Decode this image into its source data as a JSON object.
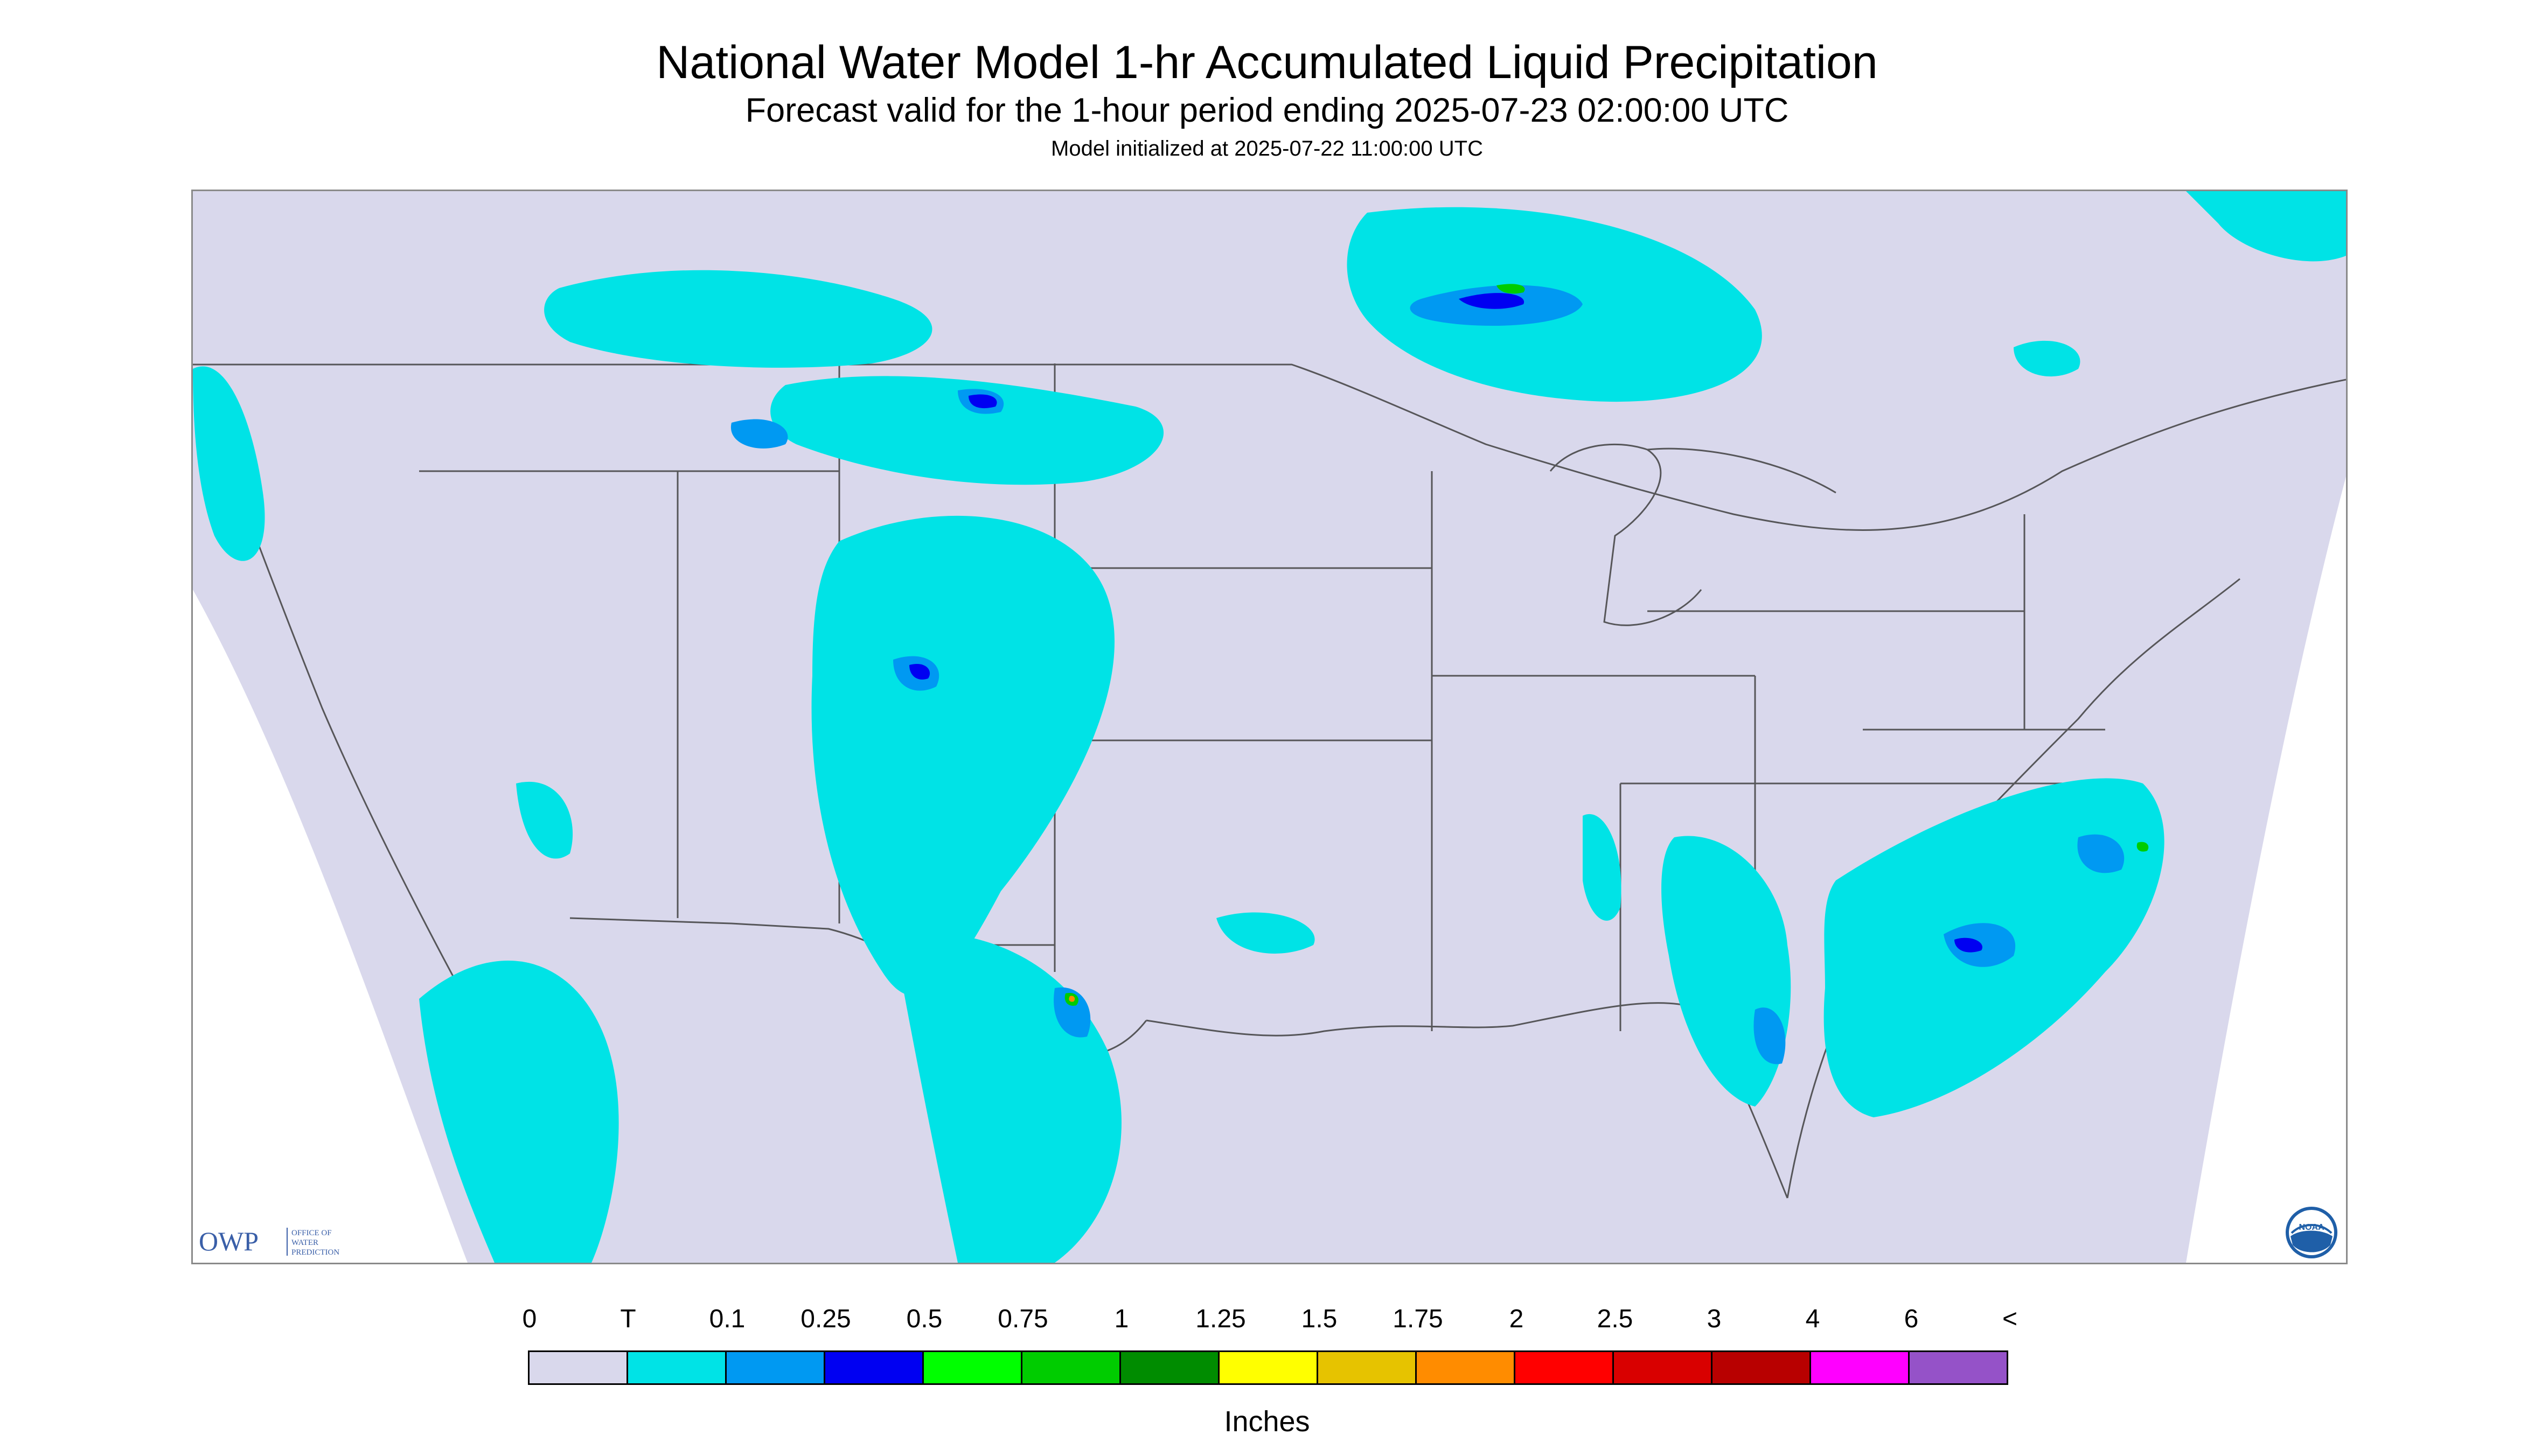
{
  "title": "National Water Model 1-hr Accumulated Liquid Precipitation",
  "subtitle": "Forecast valid for the 1-hour period ending 2025-07-23 02:00:00 UTC",
  "init_line": "Model initialized at 2025-07-22 11:00:00 UTC",
  "owp_logo": {
    "mark": "OWP",
    "line1": "OFFICE OF",
    "line2": "WATER",
    "line3": "PREDICTION"
  },
  "noaa_logo": {
    "text": "NOAA"
  },
  "legend": {
    "labels": [
      "0",
      "T",
      "0.1",
      "0.25",
      "0.5",
      "0.75",
      "1",
      "1.25",
      "1.5",
      "1.75",
      "2",
      "2.5",
      "3",
      "4",
      "6",
      "<"
    ],
    "colors": [
      "#d9d8ec",
      "#00e3e6",
      "#0099f2",
      "#0000f2",
      "#00ff00",
      "#00cc00",
      "#008c00",
      "#ffff00",
      "#e6c300",
      "#ff8c00",
      "#ff0000",
      "#d90000",
      "#b80000",
      "#ff00ff",
      "#9552c8"
    ],
    "units": "Inches"
  },
  "map": {
    "domain_fill": "#d9d8ec",
    "outside_fill": "#ffffff",
    "boundary_color": "#404040"
  }
}
